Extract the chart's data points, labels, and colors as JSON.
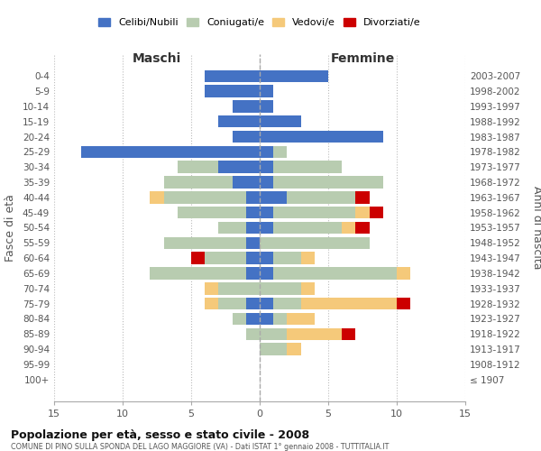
{
  "age_groups": [
    "0-4",
    "5-9",
    "10-14",
    "15-19",
    "20-24",
    "25-29",
    "30-34",
    "35-39",
    "40-44",
    "45-49",
    "50-54",
    "55-59",
    "60-64",
    "65-69",
    "70-74",
    "75-79",
    "80-84",
    "85-89",
    "90-94",
    "95-99",
    "100+"
  ],
  "birth_years": [
    "2003-2007",
    "1998-2002",
    "1993-1997",
    "1988-1992",
    "1983-1987",
    "1978-1982",
    "1973-1977",
    "1968-1972",
    "1963-1967",
    "1958-1962",
    "1953-1957",
    "1948-1952",
    "1943-1947",
    "1938-1942",
    "1933-1937",
    "1928-1932",
    "1923-1927",
    "1918-1922",
    "1913-1917",
    "1908-1912",
    "≤ 1907"
  ],
  "maschi": {
    "celibe": [
      4,
      4,
      2,
      3,
      2,
      13,
      3,
      2,
      1,
      1,
      1,
      1,
      1,
      1,
      0,
      1,
      1,
      0,
      0,
      0,
      0
    ],
    "coniugato": [
      0,
      0,
      0,
      0,
      0,
      0,
      3,
      5,
      6,
      5,
      2,
      6,
      3,
      7,
      3,
      2,
      1,
      1,
      0,
      0,
      0
    ],
    "vedovo": [
      0,
      0,
      0,
      0,
      0,
      0,
      0,
      0,
      1,
      0,
      0,
      0,
      0,
      0,
      1,
      1,
      0,
      0,
      0,
      0,
      0
    ],
    "divorziato": [
      0,
      0,
      0,
      0,
      0,
      0,
      0,
      0,
      0,
      0,
      0,
      0,
      1,
      0,
      0,
      0,
      0,
      0,
      0,
      0,
      0
    ]
  },
  "femmine": {
    "nubile": [
      5,
      1,
      1,
      3,
      9,
      1,
      1,
      1,
      2,
      1,
      1,
      0,
      1,
      1,
      0,
      1,
      1,
      0,
      0,
      0,
      0
    ],
    "coniugata": [
      0,
      0,
      0,
      0,
      0,
      1,
      5,
      8,
      5,
      6,
      5,
      8,
      2,
      9,
      3,
      2,
      1,
      2,
      2,
      0,
      0
    ],
    "vedova": [
      0,
      0,
      0,
      0,
      0,
      0,
      0,
      0,
      0,
      1,
      1,
      0,
      1,
      1,
      1,
      7,
      2,
      4,
      1,
      0,
      0
    ],
    "divorziata": [
      0,
      0,
      0,
      0,
      0,
      0,
      0,
      0,
      1,
      1,
      1,
      0,
      0,
      0,
      0,
      1,
      0,
      1,
      0,
      0,
      0
    ]
  },
  "colors": {
    "celibe": "#4472C4",
    "coniugato": "#B8CCB0",
    "vedovo": "#F5C97A",
    "divorziato": "#CC0000"
  },
  "xlim": 15,
  "title": "Popolazione per età, sesso e stato civile - 2008",
  "subtitle": "COMUNE DI PINO SULLA SPONDA DEL LAGO MAGGIORE (VA) - Dati ISTAT 1° gennaio 2008 - TUTTITALIA.IT",
  "ylabel_left": "Fasce di età",
  "ylabel_right": "Anni di nascita",
  "xlabel_left": "Maschi",
  "xlabel_right": "Femmine"
}
